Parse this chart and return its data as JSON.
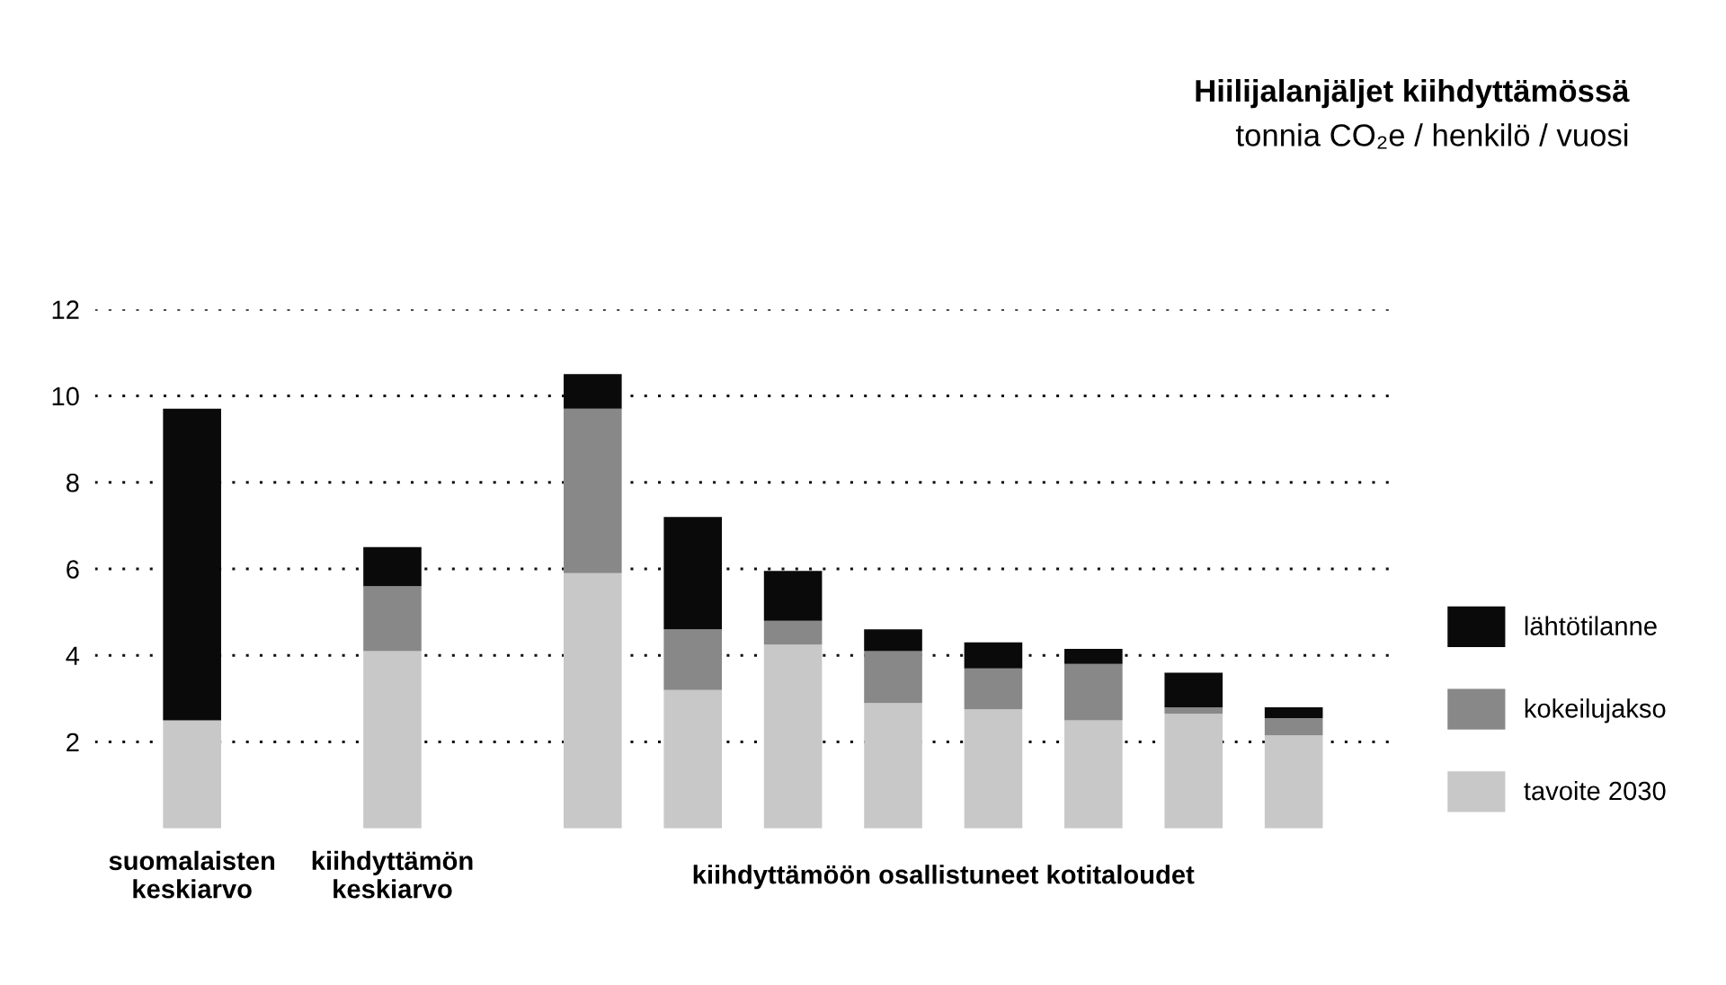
{
  "chart_data": {
    "type": "bar",
    "stacked": true,
    "title": "Hiilijalanjäljet kiihdyttämössä",
    "subtitle": "tonnia CO₂e / henkilö / vuosi",
    "categories": [
      "suomalaisten\nkeskiarvo",
      null,
      "kiihdyttämön\nkeskiarvo",
      null,
      null,
      null,
      null,
      null,
      null,
      null,
      null,
      null
    ],
    "series": [
      {
        "name": "tavoite 2030",
        "color": "#c8c8c8",
        "values": [
          2.5,
          null,
          4.1,
          null,
          5.9,
          3.2,
          4.25,
          2.9,
          2.75,
          2.5,
          2.65,
          2.15
        ]
      },
      {
        "name": "kokeilujakso",
        "color": "#888888",
        "values": [
          0,
          null,
          1.5,
          null,
          3.8,
          1.4,
          0.55,
          1.2,
          0.95,
          1.3,
          0.15,
          0.4
        ]
      },
      {
        "name": "lähtötilanne",
        "color": "#0a0a0a",
        "values": [
          7.2,
          null,
          0.9,
          null,
          0.8,
          2.6,
          1.15,
          0.5,
          0.6,
          0.35,
          0.8,
          0.25
        ]
      }
    ],
    "annotations": [
      "kiihdyttämöön osallistuneet kotitaloudet"
    ],
    "ylim": [
      0,
      12
    ],
    "yticks": [
      2,
      4,
      6,
      8,
      10,
      12
    ],
    "grid": "y",
    "legend": "right"
  }
}
